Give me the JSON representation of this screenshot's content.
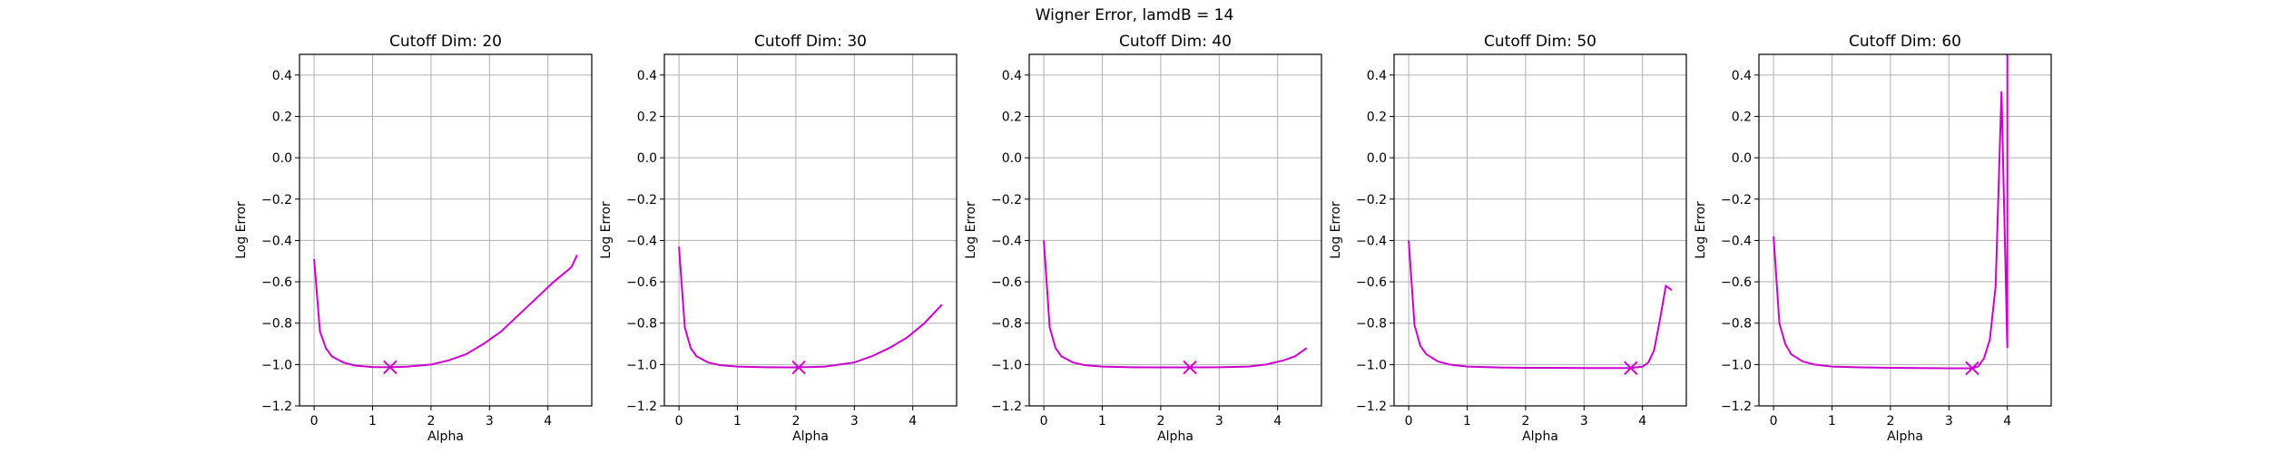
{
  "figure": {
    "title": "Wigner Error, lamdB = 14"
  },
  "chart_data": [
    {
      "type": "line",
      "title": "Cutoff Dim: 20",
      "xlabel": "Alpha",
      "ylabel": "Log Error",
      "xlim": [
        -0.25,
        4.75
      ],
      "ylim": [
        -1.2,
        0.5
      ],
      "xticks": [
        "0",
        "1",
        "2",
        "3",
        "4"
      ],
      "yticks": [
        "0.4",
        "0.2",
        "0.0",
        "−0.2",
        "−0.4",
        "−0.6",
        "−0.8",
        "−1.0",
        "−1.2"
      ],
      "grid": true,
      "color": "#cc00cc",
      "series": [
        {
          "x": [
            0,
            0.1,
            0.2,
            0.3,
            0.5,
            0.7,
            1.0,
            1.3,
            1.6,
            2.0,
            2.3,
            2.6,
            2.9,
            3.2,
            3.5,
            3.8,
            4.1,
            4.4,
            4.5
          ],
          "y": [
            -0.49,
            -0.84,
            -0.92,
            -0.96,
            -0.99,
            -1.005,
            -1.012,
            -1.013,
            -1.01,
            -1.0,
            -0.98,
            -0.95,
            -0.9,
            -0.84,
            -0.76,
            -0.68,
            -0.6,
            -0.53,
            -0.47
          ]
        }
      ],
      "min_marker": {
        "x": 1.3,
        "y": -1.013
      }
    },
    {
      "type": "line",
      "title": "Cutoff Dim: 30",
      "xlabel": "Alpha",
      "ylabel": "Log Error",
      "xlim": [
        -0.25,
        4.75
      ],
      "ylim": [
        -1.2,
        0.5
      ],
      "xticks": [
        "0",
        "1",
        "2",
        "3",
        "4"
      ],
      "yticks": [
        "0.4",
        "0.2",
        "0.0",
        "−0.2",
        "−0.4",
        "−0.6",
        "−0.8",
        "−1.0",
        "−1.2"
      ],
      "grid": true,
      "color": "#cc00cc",
      "series": [
        {
          "x": [
            0,
            0.1,
            0.2,
            0.3,
            0.5,
            0.7,
            1.0,
            1.5,
            2.0,
            2.5,
            3.0,
            3.3,
            3.6,
            3.9,
            4.2,
            4.5
          ],
          "y": [
            -0.43,
            -0.82,
            -0.92,
            -0.96,
            -0.99,
            -1.003,
            -1.01,
            -1.013,
            -1.014,
            -1.01,
            -0.99,
            -0.96,
            -0.92,
            -0.87,
            -0.8,
            -0.71
          ]
        }
      ],
      "min_marker": {
        "x": 2.05,
        "y": -1.014
      }
    },
    {
      "type": "line",
      "title": "Cutoff Dim: 40",
      "xlabel": "Alpha",
      "ylabel": "Log Error",
      "xlim": [
        -0.25,
        4.75
      ],
      "ylim": [
        -1.2,
        0.5
      ],
      "xticks": [
        "0",
        "1",
        "2",
        "3",
        "4"
      ],
      "yticks": [
        "0.4",
        "0.2",
        "0.0",
        "−0.2",
        "−0.4",
        "−0.6",
        "−0.8",
        "−1.0",
        "−1.2"
      ],
      "grid": true,
      "color": "#cc00cc",
      "series": [
        {
          "x": [
            0,
            0.1,
            0.2,
            0.3,
            0.5,
            0.7,
            1.0,
            1.5,
            2.0,
            2.5,
            3.0,
            3.5,
            3.8,
            4.1,
            4.3,
            4.5
          ],
          "y": [
            -0.4,
            -0.82,
            -0.92,
            -0.96,
            -0.99,
            -1.003,
            -1.01,
            -1.013,
            -1.014,
            -1.014,
            -1.013,
            -1.01,
            -1.0,
            -0.98,
            -0.96,
            -0.92
          ]
        }
      ],
      "min_marker": {
        "x": 2.5,
        "y": -1.014
      }
    },
    {
      "type": "line",
      "title": "Cutoff Dim: 50",
      "xlabel": "Alpha",
      "ylabel": "Log Error",
      "xlim": [
        -0.25,
        4.75
      ],
      "ylim": [
        -1.2,
        0.5
      ],
      "xticks": [
        "0",
        "1",
        "2",
        "3",
        "4"
      ],
      "yticks": [
        "0.4",
        "0.2",
        "0.0",
        "−0.2",
        "−0.4",
        "−0.6",
        "−0.8",
        "−1.0",
        "−1.2"
      ],
      "grid": true,
      "color": "#cc00cc",
      "series": [
        {
          "x": [
            0,
            0.1,
            0.2,
            0.3,
            0.5,
            0.7,
            1.0,
            1.5,
            2.0,
            2.5,
            3.0,
            3.5,
            3.8,
            4.0,
            4.1,
            4.2,
            4.3,
            4.4,
            4.5
          ],
          "y": [
            -0.4,
            -0.81,
            -0.91,
            -0.95,
            -0.985,
            -1.0,
            -1.01,
            -1.014,
            -1.016,
            -1.016,
            -1.017,
            -1.017,
            -1.017,
            -1.01,
            -0.99,
            -0.93,
            -0.78,
            -0.62,
            -0.64
          ]
        }
      ],
      "min_marker": {
        "x": 3.8,
        "y": -1.017
      }
    },
    {
      "type": "line",
      "title": "Cutoff Dim: 60",
      "xlabel": "Alpha",
      "ylabel": "Log Error",
      "xlim": [
        -0.25,
        4.75
      ],
      "ylim": [
        -1.2,
        0.5
      ],
      "xticks": [
        "0",
        "1",
        "2",
        "3",
        "4"
      ],
      "yticks": [
        "0.4",
        "0.2",
        "0.0",
        "−0.2",
        "−0.4",
        "−0.6",
        "−0.8",
        "−1.0",
        "−1.2"
      ],
      "grid": true,
      "color": "#cc00cc",
      "series": [
        {
          "x": [
            0,
            0.1,
            0.2,
            0.3,
            0.5,
            0.7,
            1.0,
            1.5,
            2.0,
            2.5,
            3.0,
            3.4,
            3.5,
            3.6,
            3.7,
            3.8,
            3.9,
            4.0,
            4.0
          ],
          "y": [
            -0.38,
            -0.8,
            -0.9,
            -0.95,
            -0.985,
            -1.0,
            -1.01,
            -1.014,
            -1.016,
            -1.017,
            -1.018,
            -1.018,
            -1.01,
            -0.97,
            -0.88,
            -0.62,
            0.32,
            -0.92,
            0.55
          ]
        }
      ],
      "min_marker": {
        "x": 3.4,
        "y": -1.018
      }
    }
  ]
}
